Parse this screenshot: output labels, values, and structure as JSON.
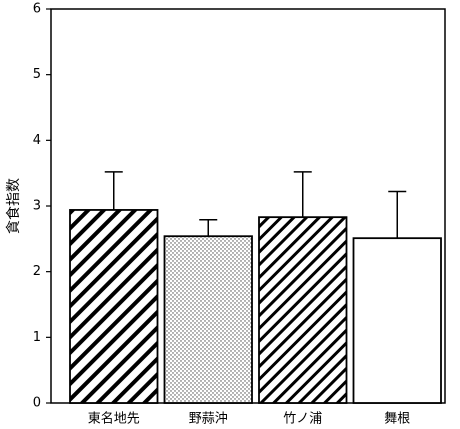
{
  "chart_data": {
    "type": "bar",
    "y_label": "貪食指数",
    "categories": [
      "東名地先",
      "野蒜沖",
      "竹ノ浦",
      "舞根"
    ],
    "values": [
      2.94,
      2.54,
      2.83,
      2.51
    ],
    "errors": [
      0.58,
      0.25,
      0.69,
      0.71
    ],
    "patterns": [
      "hatch",
      "dots",
      "hatch-fine",
      "none"
    ],
    "color": "#000000",
    "ylim": [
      0,
      6
    ],
    "yticks": [
      0,
      1,
      2,
      3,
      4,
      5,
      6
    ],
    "grid": false
  }
}
